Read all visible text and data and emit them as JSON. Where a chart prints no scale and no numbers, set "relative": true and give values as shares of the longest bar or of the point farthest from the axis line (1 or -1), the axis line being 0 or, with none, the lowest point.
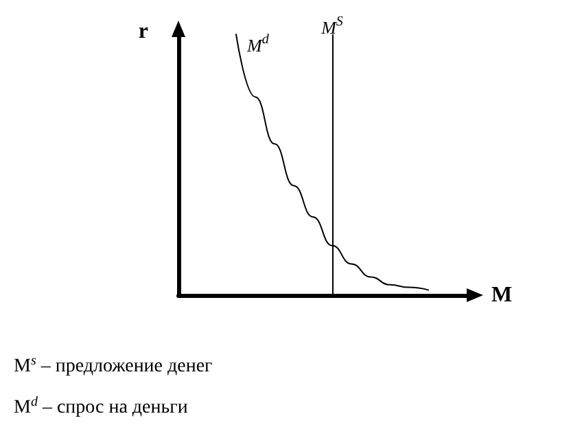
{
  "chart_data": {
    "type": "line",
    "relative": true,
    "xlabel": "M",
    "ylabel": "r",
    "categories": [
      null,
      null,
      null,
      null,
      null,
      null,
      null,
      null,
      null,
      null,
      null,
      null,
      null,
      null,
      null,
      null
    ],
    "series": [
      {
        "name": "M$^{d}$",
        "color": "#000000",
        "values": [
          null,
          null,
          null,
          1.0,
          0.76,
          0.58,
          0.42,
          0.3,
          0.19,
          0.12,
          0.07,
          0.04,
          0.03,
          0.02,
          null,
          null
        ]
      }
    ],
    "annotations": [
      "M$^{S}$",
      "M$^{s}$ – предложение денег",
      "M$^{d}$ – спрос на деньги"
    ],
    "marker": "none",
    "line_style": "solid",
    "grid": false,
    "legend": false
  }
}
